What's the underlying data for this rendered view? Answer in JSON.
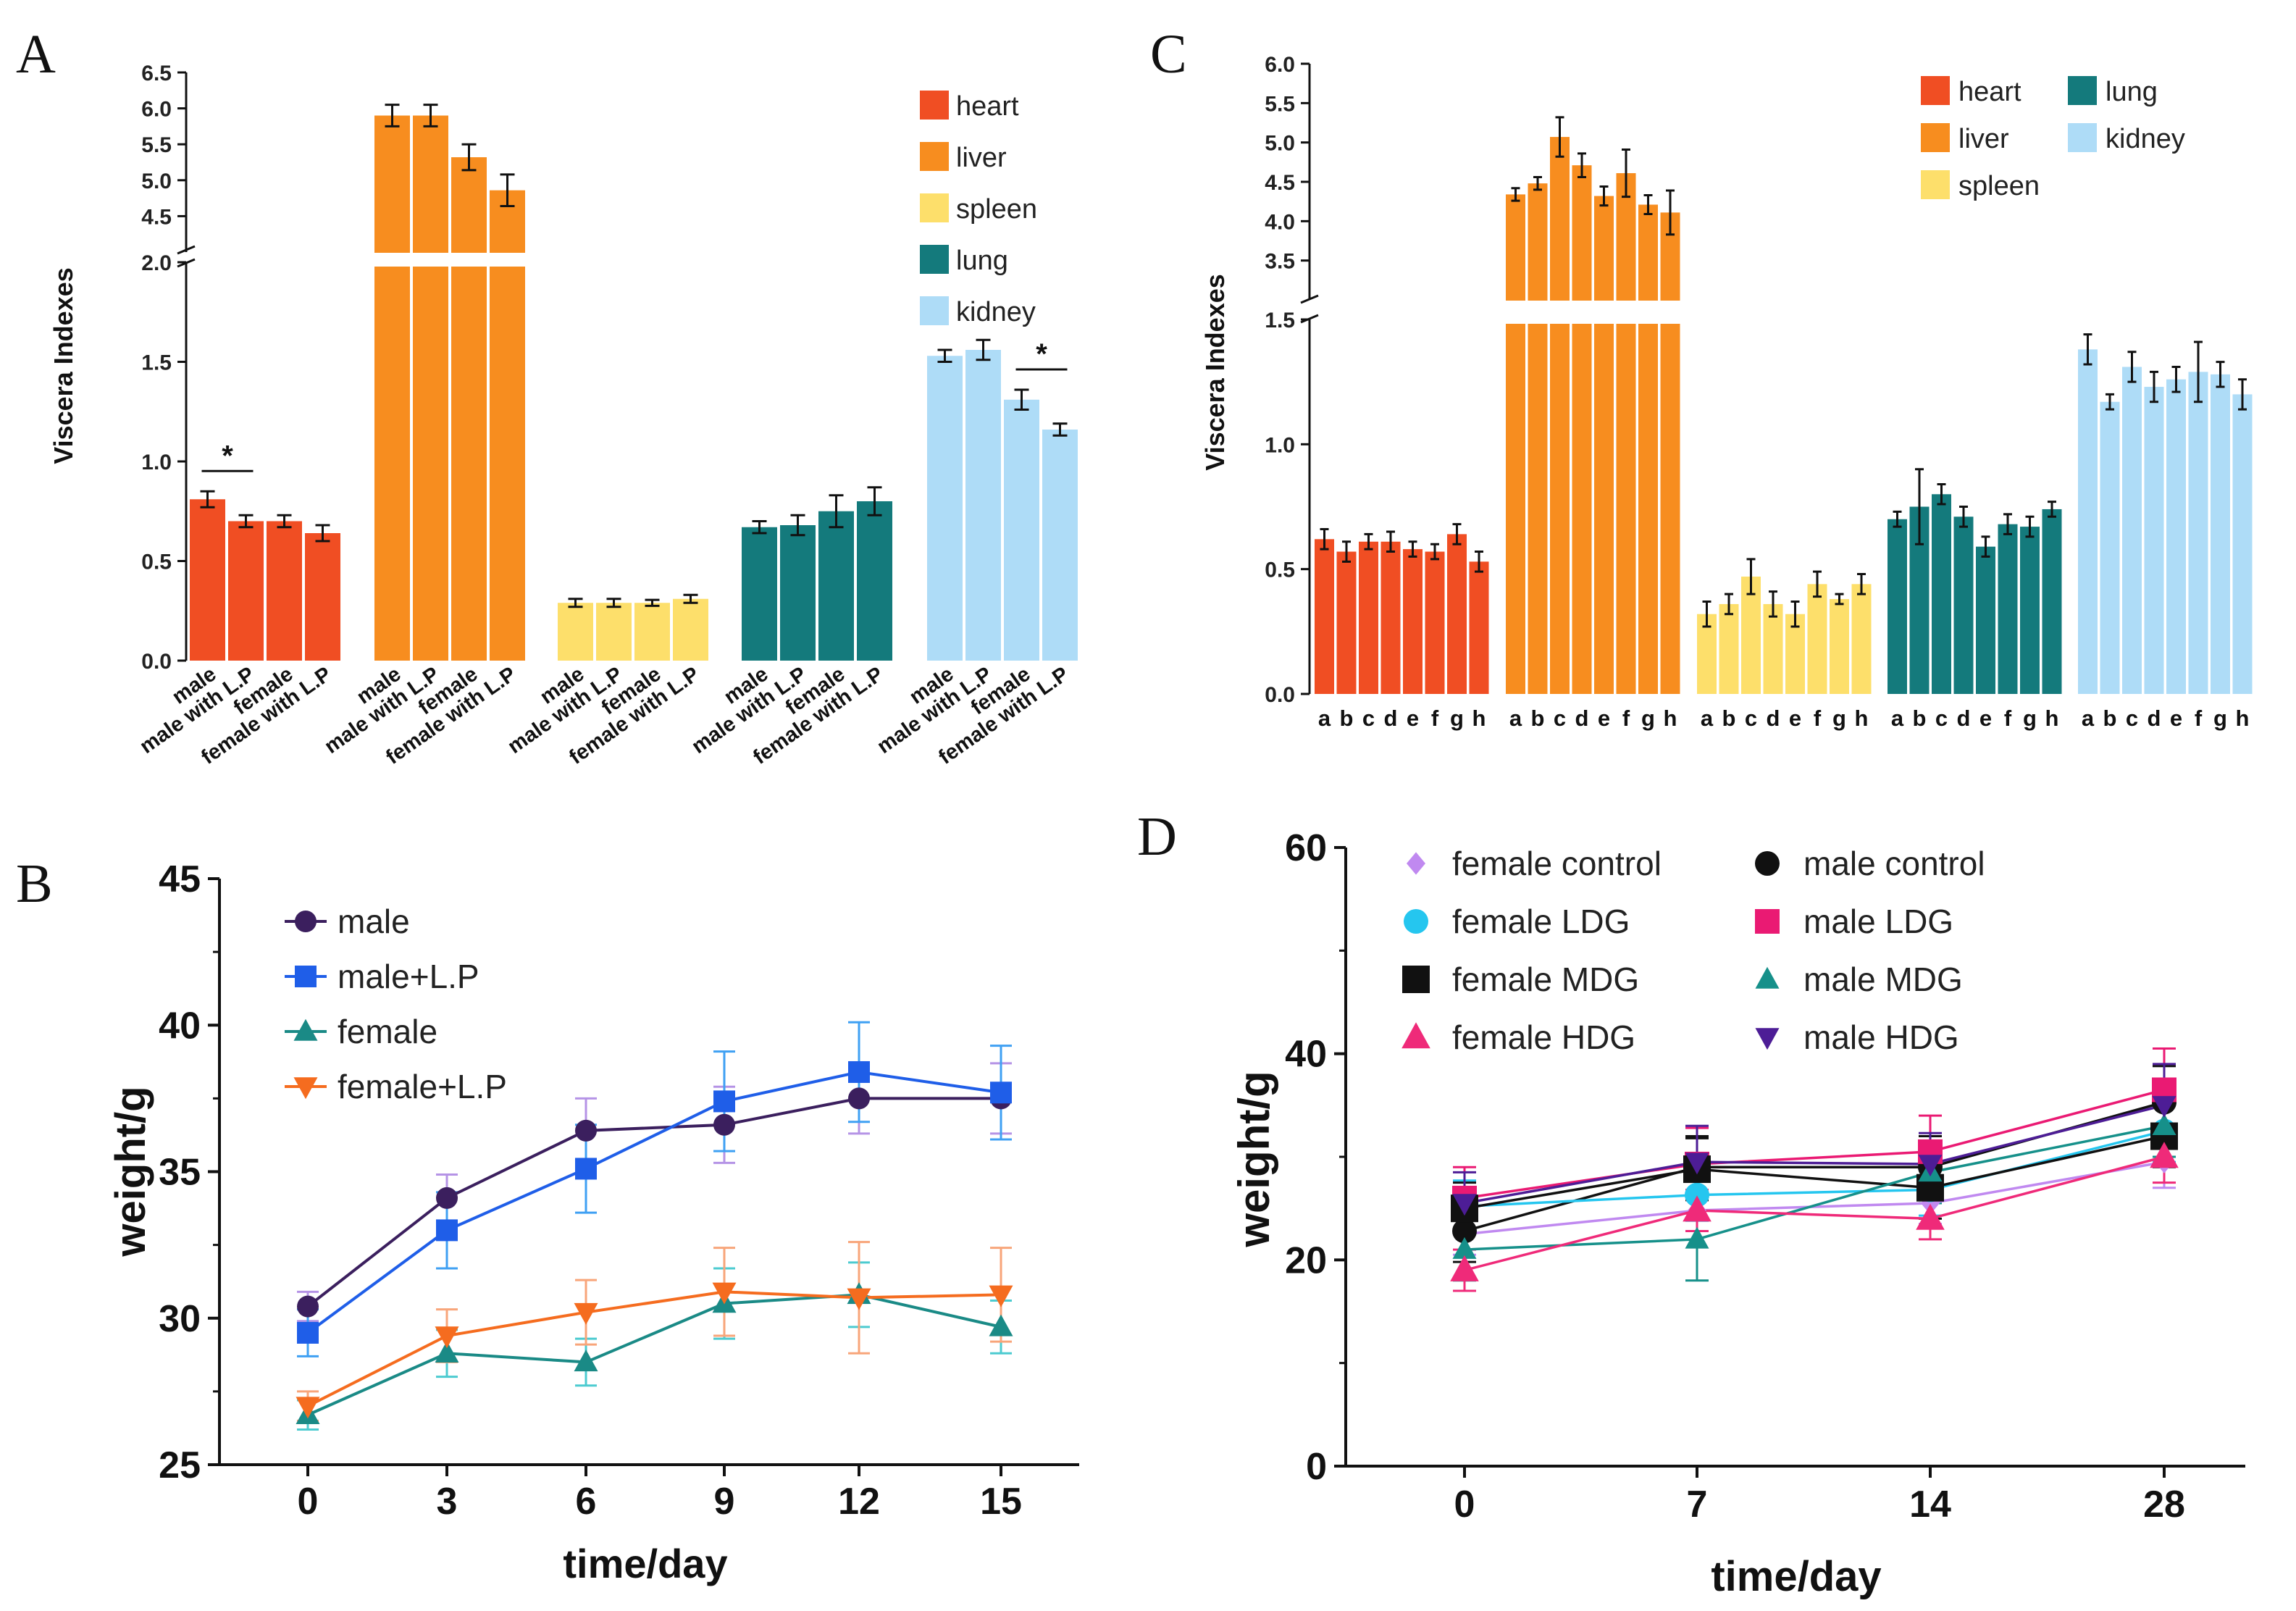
{
  "panels": {
    "A": {
      "label": "A"
    },
    "B": {
      "label": "B"
    },
    "C": {
      "label": "C"
    },
    "D": {
      "label": "D"
    }
  },
  "colors": {
    "heart": "#f04e23",
    "liver": "#f78d1f",
    "spleen": "#fddf6b",
    "lung": "#147a7c",
    "kidney": "#aedcf7",
    "B_male": "#3b1f5e",
    "B_male_lp": "#1f5ee8",
    "B_female": "#1a8a86",
    "B_female_lp": "#f56c1f",
    "B_male_err": "#b593e6",
    "B_male_lp_err": "#3fa0f3",
    "B_female_err": "#4ccbd0",
    "B_female_lp_err": "#f8a57a",
    "D_female_control": "#c089f0",
    "D_male_control": "#111111",
    "D_female_ldg": "#25c6ef",
    "D_male_ldg": "#ea1a73",
    "D_female_mdg": "#111111",
    "D_male_mdg": "#16908a",
    "D_female_hdg": "#ef2a79",
    "D_male_hdg": "#4d1d96"
  },
  "chart_data": [
    {
      "panel": "A",
      "type": "bar",
      "ylabel": "Viscera Indexes",
      "ylim_lower": [
        0,
        2.0
      ],
      "ylim_upper": [
        4.0,
        6.5
      ],
      "lower_ticks": [
        "0.0",
        "0.5",
        "1.0",
        "1.5",
        "2.0"
      ],
      "upper_ticks": [
        "4.5",
        "5.0",
        "5.5",
        "6.0",
        "6.5"
      ],
      "categories": [
        "male",
        "male with L.P",
        "female",
        "female with L.P"
      ],
      "legend": [
        "heart",
        "liver",
        "spleen",
        "lung",
        "kidney"
      ],
      "series": [
        {
          "name": "heart",
          "values": [
            0.81,
            0.7,
            0.7,
            0.64
          ],
          "errors": [
            0.04,
            0.03,
            0.03,
            0.04
          ]
        },
        {
          "name": "liver",
          "values": [
            5.9,
            5.9,
            5.32,
            4.86
          ],
          "errors": [
            0.15,
            0.15,
            0.18,
            0.22
          ]
        },
        {
          "name": "spleen",
          "values": [
            0.29,
            0.29,
            0.29,
            0.31
          ],
          "errors": [
            0.02,
            0.02,
            0.015,
            0.02
          ]
        },
        {
          "name": "lung",
          "values": [
            0.67,
            0.68,
            0.75,
            0.8
          ],
          "errors": [
            0.03,
            0.05,
            0.08,
            0.07
          ]
        },
        {
          "name": "kidney",
          "values": [
            1.53,
            1.56,
            1.31,
            1.16
          ],
          "errors": [
            0.03,
            0.05,
            0.05,
            0.03
          ]
        }
      ],
      "significance": [
        {
          "series": "heart",
          "pair": [
            0,
            1
          ],
          "mark": "*"
        },
        {
          "series": "kidney",
          "pair": [
            2,
            3
          ],
          "mark": "*"
        }
      ]
    },
    {
      "panel": "B",
      "type": "line",
      "xlabel": "time/day",
      "ylabel": "weight/g",
      "x": [
        0,
        3,
        6,
        9,
        12,
        15
      ],
      "xticks": [
        "0",
        "3",
        "6",
        "9",
        "12",
        "15"
      ],
      "yticks": [
        "25",
        "30",
        "35",
        "40",
        "45"
      ],
      "ylim": [
        25,
        45
      ],
      "series": [
        {
          "name": "male",
          "marker": "circle",
          "values": [
            30.4,
            34.1,
            36.4,
            36.6,
            37.5,
            37.5
          ],
          "errors": [
            0.5,
            0.8,
            1.1,
            1.3,
            1.2,
            1.2
          ]
        },
        {
          "name": "male+L.P",
          "marker": "square",
          "values": [
            29.5,
            33.0,
            35.1,
            37.4,
            38.4,
            37.7
          ],
          "errors": [
            0.8,
            1.3,
            1.5,
            1.7,
            1.7,
            1.6
          ]
        },
        {
          "name": "female",
          "marker": "triangle",
          "values": [
            26.7,
            28.8,
            28.5,
            30.5,
            30.8,
            29.7
          ],
          "errors": [
            0.5,
            0.8,
            0.8,
            1.2,
            1.1,
            0.9
          ]
        },
        {
          "name": "female+L.P",
          "marker": "triangle-down",
          "values": [
            27.0,
            29.4,
            30.2,
            30.9,
            30.7,
            30.8
          ],
          "errors": [
            0.5,
            0.9,
            1.1,
            1.5,
            1.9,
            1.6
          ]
        }
      ]
    },
    {
      "panel": "C",
      "type": "bar",
      "ylabel": "Viscera Indexes",
      "ylim_lower": [
        0,
        1.5
      ],
      "ylim_upper": [
        3.0,
        6.0
      ],
      "lower_ticks": [
        "0.0",
        "0.5",
        "1.0",
        "1.5"
      ],
      "upper_ticks": [
        "3.5",
        "4.0",
        "4.5",
        "5.0",
        "5.5",
        "6.0"
      ],
      "categories": [
        "a",
        "b",
        "c",
        "d",
        "e",
        "f",
        "g",
        "h"
      ],
      "legend": [
        "heart",
        "lung",
        "liver",
        "kidney",
        "spleen"
      ],
      "series": [
        {
          "name": "heart",
          "values": [
            0.62,
            0.57,
            0.61,
            0.61,
            0.58,
            0.57,
            0.64,
            0.53
          ],
          "errors": [
            0.04,
            0.04,
            0.03,
            0.04,
            0.03,
            0.03,
            0.04,
            0.04
          ]
        },
        {
          "name": "liver",
          "values": [
            4.34,
            4.48,
            5.07,
            4.71,
            4.32,
            4.61,
            4.21,
            4.11
          ],
          "errors": [
            0.08,
            0.08,
            0.25,
            0.15,
            0.12,
            0.3,
            0.12,
            0.28
          ]
        },
        {
          "name": "spleen",
          "values": [
            0.32,
            0.36,
            0.47,
            0.36,
            0.32,
            0.44,
            0.38,
            0.44
          ],
          "errors": [
            0.05,
            0.04,
            0.07,
            0.05,
            0.05,
            0.05,
            0.02,
            0.04
          ]
        },
        {
          "name": "lung",
          "values": [
            0.7,
            0.75,
            0.8,
            0.71,
            0.59,
            0.68,
            0.67,
            0.74
          ],
          "errors": [
            0.03,
            0.15,
            0.04,
            0.04,
            0.04,
            0.04,
            0.04,
            0.03
          ]
        },
        {
          "name": "kidney",
          "values": [
            1.38,
            1.17,
            1.31,
            1.23,
            1.26,
            1.29,
            1.28,
            1.2
          ],
          "errors": [
            0.06,
            0.03,
            0.06,
            0.06,
            0.05,
            0.12,
            0.05,
            0.06
          ]
        }
      ]
    },
    {
      "panel": "D",
      "type": "line",
      "xlabel": "time/day",
      "ylabel": "weight/g",
      "x": [
        0,
        7,
        14,
        28
      ],
      "xticks": [
        "0",
        "7",
        "14",
        "28"
      ],
      "yticks": [
        "0",
        "20",
        "40",
        "60"
      ],
      "ylim": [
        0,
        60
      ],
      "series": [
        {
          "name": "female control",
          "marker": "diamond",
          "values": [
            22.5,
            24.8,
            25.5,
            29.5
          ],
          "errors": [
            2.0,
            2.0,
            2.0,
            2.5
          ]
        },
        {
          "name": "male control",
          "marker": "circle",
          "values": [
            22.8,
            29.0,
            29.0,
            35.3
          ],
          "errors": [
            3.0,
            3.0,
            3.0,
            3.5
          ]
        },
        {
          "name": "female LDG",
          "marker": "circle",
          "values": [
            25.2,
            26.3,
            26.8,
            32.5
          ],
          "errors": [
            2.5,
            2.5,
            2.5,
            3.0
          ]
        },
        {
          "name": "male LDG",
          "marker": "square",
          "values": [
            26.0,
            29.3,
            30.5,
            36.5
          ],
          "errors": [
            3.0,
            3.5,
            3.5,
            4.0
          ]
        },
        {
          "name": "female MDG",
          "marker": "square",
          "values": [
            25.0,
            28.8,
            27.0,
            32.0
          ],
          "errors": [
            2.5,
            3.0,
            3.0,
            3.0
          ]
        },
        {
          "name": "male MDG",
          "marker": "triangle",
          "values": [
            21.0,
            22.0,
            28.5,
            33.0
          ],
          "errors": [
            3.0,
            4.0,
            3.0,
            3.0
          ]
        },
        {
          "name": "female HDG",
          "marker": "triangle",
          "values": [
            19.0,
            24.8,
            24.0,
            30.0
          ],
          "errors": [
            2.0,
            2.0,
            2.0,
            2.5
          ]
        },
        {
          "name": "male HDG",
          "marker": "triangle-down",
          "values": [
            25.5,
            29.5,
            29.3,
            35.0
          ],
          "errors": [
            3.0,
            3.5,
            3.0,
            4.0
          ]
        }
      ]
    }
  ]
}
